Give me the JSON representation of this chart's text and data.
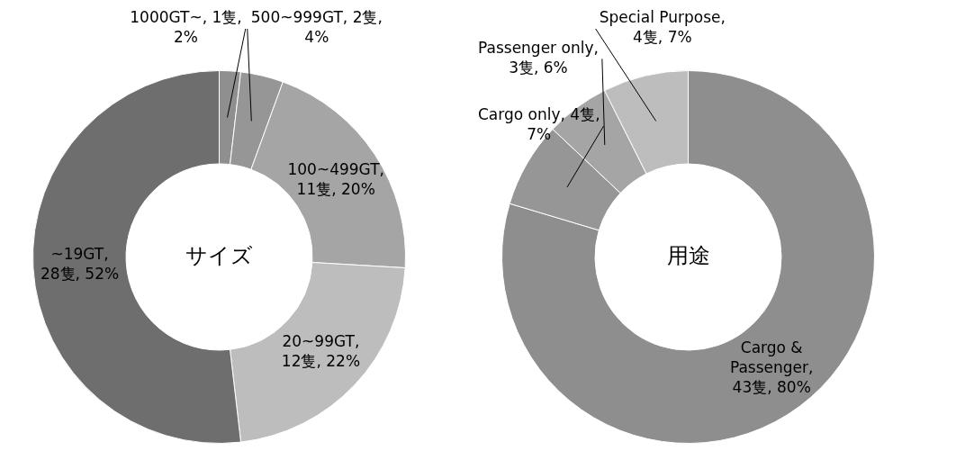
{
  "chart_data": [
    {
      "type": "donut",
      "title": "サイズ",
      "categories": [
        "1000GT~",
        "500~999GT",
        "100~499GT",
        "20~99GT",
        "~19GT"
      ],
      "values": [
        1,
        2,
        11,
        12,
        28
      ],
      "value_labels": [
        ", 1隻, 2%",
        ", 2隻, 4%",
        ", 11隻, 20%",
        ", 12隻, 22%",
        ", 28隻, 52%"
      ],
      "colors": [
        "#8f8f8f",
        "#969696",
        "#a5a5a5",
        "#bdbdbd",
        "#6e6e6e"
      ],
      "legend": false
    },
    {
      "type": "donut",
      "title": "用途",
      "categories": [
        "Cargo & Passenger",
        "Cargo only",
        "Passenger only",
        "Special Purpose"
      ],
      "values": [
        43,
        4,
        3,
        4
      ],
      "value_labels": [
        ", 43隻, 80%",
        ", 4隻, 7%",
        ", 3隻, 6%",
        ", 4隻, 7%"
      ],
      "colors": [
        "#8e8e8e",
        "#969696",
        "#a5a5a5",
        "#bdbdbd"
      ],
      "legend": false
    }
  ]
}
